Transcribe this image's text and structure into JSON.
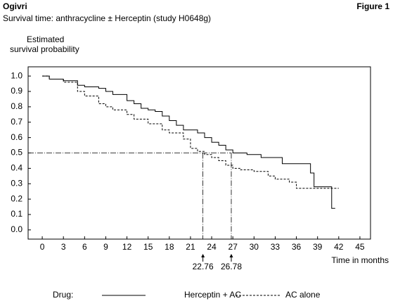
{
  "chart_data": {
    "type": "step",
    "brand": "Ogivri",
    "figure_label": "Figure 1",
    "title": "Survival time: anthracycline ± Herceptin (study H0648g)",
    "ylabel_lines": [
      "Estimated",
      "survival probability"
    ],
    "xlabel": "Time in months",
    "legend_title": "Drug:",
    "xlim": [
      -2,
      46.5
    ],
    "ylim": [
      -0.06,
      1.06
    ],
    "xticks": [
      0,
      3,
      6,
      9,
      12,
      15,
      18,
      21,
      24,
      27,
      30,
      33,
      36,
      39,
      42,
      45
    ],
    "yticks": [
      {
        "value": 0,
        "label": "0.0"
      },
      0.1,
      0.2,
      0.3,
      0.4,
      0.5,
      0.6,
      0.7,
      0.8,
      0.9,
      {
        "value": 1,
        "label": "1.0"
      }
    ],
    "hline": 0.5,
    "medians": [
      22.76,
      26.78
    ],
    "series": [
      {
        "name": "Herceptin + AC",
        "color": "#000000",
        "dash": false,
        "x": [
          0,
          1,
          1,
          3,
          3,
          5,
          5,
          6,
          6,
          8,
          8,
          9,
          9,
          10,
          10,
          12,
          12,
          13,
          13,
          14,
          14,
          15,
          15,
          16,
          16,
          17,
          17,
          18,
          18,
          19,
          19,
          20,
          20,
          22,
          22,
          23,
          23,
          24,
          24,
          25,
          25,
          26,
          26,
          27,
          27,
          29,
          29,
          31,
          31,
          34,
          34,
          38,
          38,
          38.5,
          38.5,
          41,
          41,
          41.5
        ],
        "values": [
          1,
          1,
          0.98,
          0.98,
          0.97,
          0.97,
          0.94,
          0.94,
          0.93,
          0.93,
          0.92,
          0.92,
          0.9,
          0.9,
          0.88,
          0.88,
          0.84,
          0.84,
          0.82,
          0.82,
          0.79,
          0.79,
          0.78,
          0.78,
          0.77,
          0.77,
          0.74,
          0.74,
          0.71,
          0.71,
          0.68,
          0.68,
          0.65,
          0.65,
          0.63,
          0.63,
          0.6,
          0.6,
          0.57,
          0.57,
          0.55,
          0.55,
          0.52,
          0.52,
          0.5,
          0.5,
          0.49,
          0.49,
          0.47,
          0.47,
          0.43,
          0.43,
          0.37,
          0.37,
          0.28,
          0.28,
          0.14,
          0.14
        ]
      },
      {
        "name": "AC alone",
        "color": "#000000",
        "dash": true,
        "x": [
          0,
          1,
          1,
          3,
          3,
          5,
          5,
          6,
          6,
          8,
          8,
          9,
          9,
          10,
          10,
          12,
          12,
          13,
          13,
          15,
          15,
          17,
          17,
          18,
          18,
          20,
          20,
          21,
          21,
          22,
          22,
          23,
          23,
          24,
          24,
          25,
          25,
          26,
          26,
          27,
          27,
          28,
          28,
          30,
          30,
          32,
          32,
          33,
          33,
          35,
          35,
          36,
          36,
          42
        ],
        "values": [
          1,
          1,
          0.98,
          0.98,
          0.96,
          0.96,
          0.9,
          0.9,
          0.87,
          0.87,
          0.82,
          0.82,
          0.8,
          0.8,
          0.78,
          0.78,
          0.75,
          0.75,
          0.72,
          0.72,
          0.69,
          0.69,
          0.65,
          0.65,
          0.63,
          0.63,
          0.59,
          0.59,
          0.53,
          0.53,
          0.51,
          0.51,
          0.49,
          0.49,
          0.47,
          0.47,
          0.45,
          0.45,
          0.42,
          0.42,
          0.4,
          0.4,
          0.39,
          0.39,
          0.38,
          0.38,
          0.35,
          0.35,
          0.33,
          0.33,
          0.31,
          0.31,
          0.27,
          0.27
        ]
      }
    ]
  }
}
